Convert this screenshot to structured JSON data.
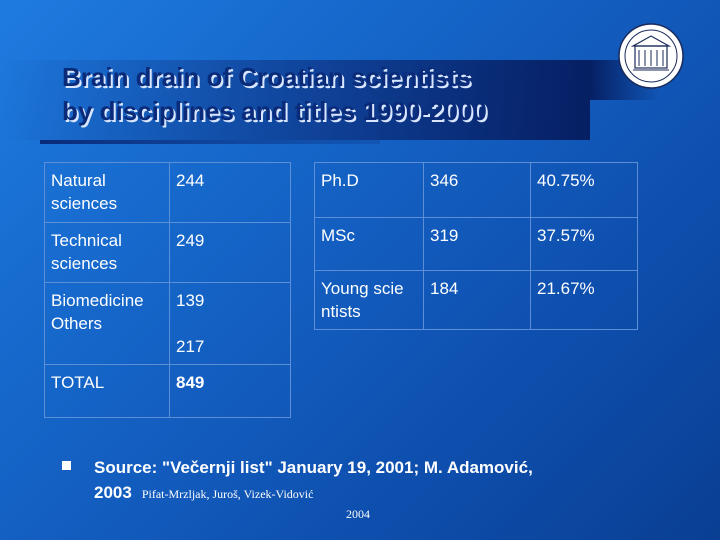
{
  "title": {
    "line1": "Brain drain of Croatian scientists",
    "line2": "by disciplines and titles 1990-2000"
  },
  "left_table": {
    "rows": [
      {
        "discipline": "Natural sciences",
        "count": "244"
      },
      {
        "discipline": "Technical sciences",
        "count": "249"
      },
      {
        "discipline": "Biomedicine",
        "count": "139"
      },
      {
        "discipline": "Others",
        "count": "217"
      },
      {
        "discipline": "TOTAL",
        "count": "849"
      }
    ]
  },
  "right_table": {
    "rows": [
      {
        "title": "Ph.D",
        "count": "346",
        "percent": "40.75%"
      },
      {
        "title": "MSc",
        "count": "319",
        "percent": "37.57%"
      },
      {
        "title": "Young scientists",
        "count": "184",
        "percent": "21.67%"
      }
    ]
  },
  "source": {
    "text": "Source: \"Večernji list\" January 19, 2001; M. Adamović, 2003",
    "authors": "Pifat-Mrzljak, Juroš, Vizek-Vidović",
    "year": "2004"
  },
  "colors": {
    "background": "#1565c8",
    "title": "#0a2a7a",
    "text": "#ffffff",
    "table_border": "#5c8fd6"
  },
  "icons": {
    "logo": "university-seal-icon",
    "bullet": "square-bullet-icon"
  }
}
